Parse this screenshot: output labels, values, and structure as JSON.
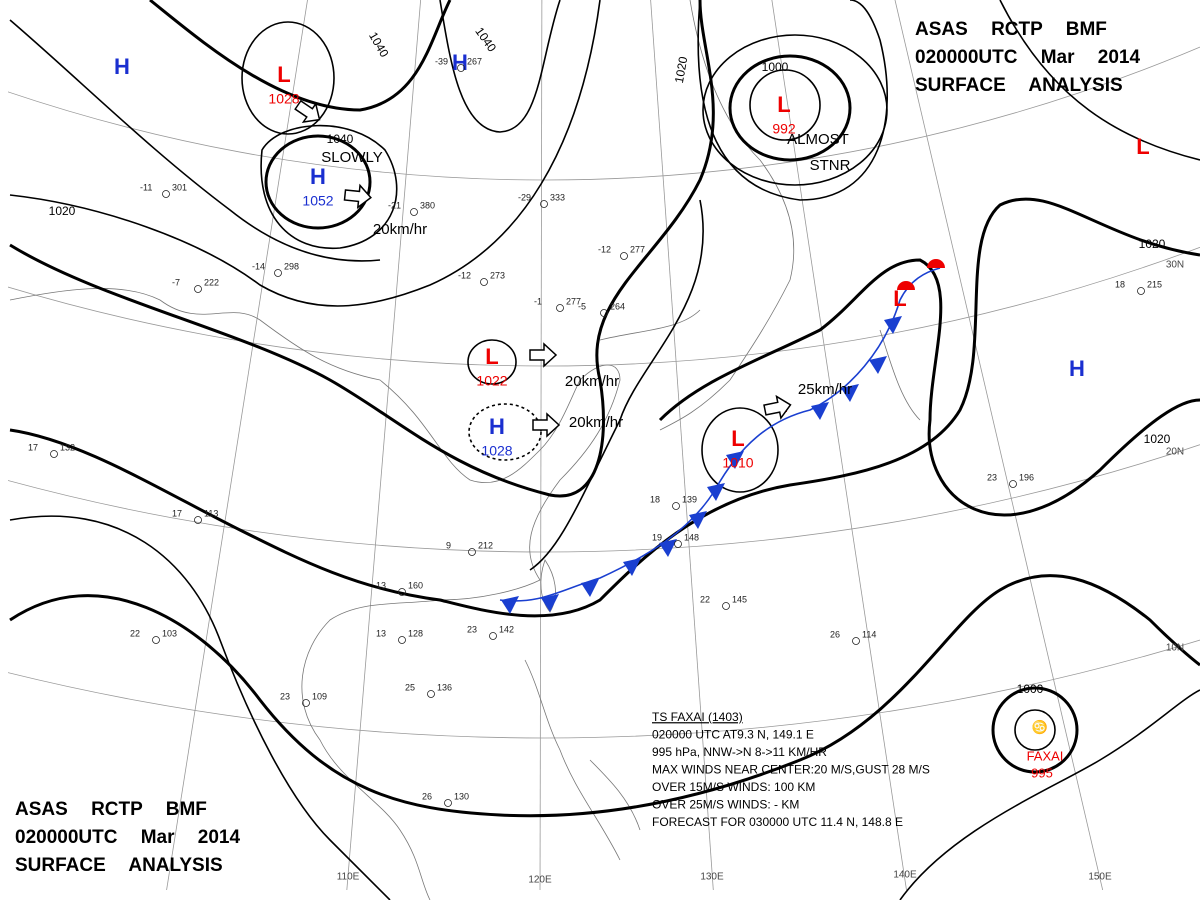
{
  "title_blocks": [
    {
      "lines": [
        "ASAS RCTP BMF",
        "020000UTC Mar 2014",
        "SURFACE ANALYSIS"
      ]
    },
    {
      "lines": [
        "ASAS RCTP BMF",
        "020000UTC Mar 2014",
        "SURFACE ANALYSIS"
      ]
    }
  ],
  "pressure_systems": [
    {
      "type": "H"
    },
    {
      "type": "L",
      "pressure": 1028
    },
    {
      "type": "H",
      "pressure": 1052
    },
    {
      "type": "H"
    },
    {
      "type": "L",
      "pressure": 992
    },
    {
      "type": "L"
    },
    {
      "type": "L",
      "pressure": 1022
    },
    {
      "type": "H",
      "pressure": 1028
    },
    {
      "type": "L",
      "pressure": 1010
    },
    {
      "type": "L"
    },
    {
      "type": "H"
    }
  ],
  "isobar_labels": [
    1040,
    1040,
    1020,
    1000,
    1040,
    1020,
    1020,
    1020,
    1000
  ],
  "motion_labels": [
    "SLOWLY",
    "20km/hr",
    "ALMOST",
    "STNR",
    "20km/hr",
    "20km/hr",
    "25km/hr"
  ],
  "typhoon": {
    "name": "FAXAI",
    "pressure": 995,
    "bulletin": [
      "TS FAXAI (1403)",
      "020000 UTC AT9.3 N, 149.1 E",
      "995 hPa, NNW->N 8->11 KM/HR",
      "MAX WINDS NEAR CENTER:20 M/S,GUST 28 M/S",
      "OVER 15M/S WINDS: 100 KM",
      "OVER 25M/S WINDS: - KM",
      "FORECAST FOR 030000 UTC 11.4 N, 148.8 E"
    ]
  },
  "grid_labels": {
    "longitudes": [
      "110E",
      "120E",
      "130E",
      "140E",
      "150E"
    ],
    "latitudes": [
      "30N",
      "20N",
      "10N"
    ]
  },
  "stations": [
    {
      "temp": -39,
      "code": 267
    },
    {
      "temp": -11,
      "code": 301
    },
    {
      "temp": -7,
      "code": 222
    },
    {
      "temp": -14,
      "code": 298
    },
    {
      "temp": -21,
      "code": 380
    },
    {
      "temp": -29,
      "code": 333
    },
    {
      "temp": -12,
      "code": 273
    },
    {
      "temp": -1,
      "code": 277
    },
    {
      "temp": -5,
      "code": 264
    },
    {
      "temp": -12,
      "code": 277
    },
    {
      "temp": 17,
      "code": 132
    },
    {
      "temp": 17,
      "code": 113
    },
    {
      "temp": 22,
      "code": 103
    },
    {
      "temp": 23,
      "code": 109
    },
    {
      "temp": 25,
      "code": 136
    },
    {
      "temp": 26,
      "code": 130
    },
    {
      "temp": 13,
      "code": 160
    },
    {
      "temp": 13,
      "code": 128
    },
    {
      "temp": 23,
      "code": 142
    },
    {
      "temp": 9,
      "code": 212
    },
    {
      "temp": 18,
      "code": 139
    },
    {
      "temp": 19,
      "code": 148
    },
    {
      "temp": 22,
      "code": 145
    },
    {
      "temp": 26,
      "code": 114
    },
    {
      "temp": 23,
      "code": 196
    },
    {
      "temp": 18,
      "code": 215
    }
  ]
}
